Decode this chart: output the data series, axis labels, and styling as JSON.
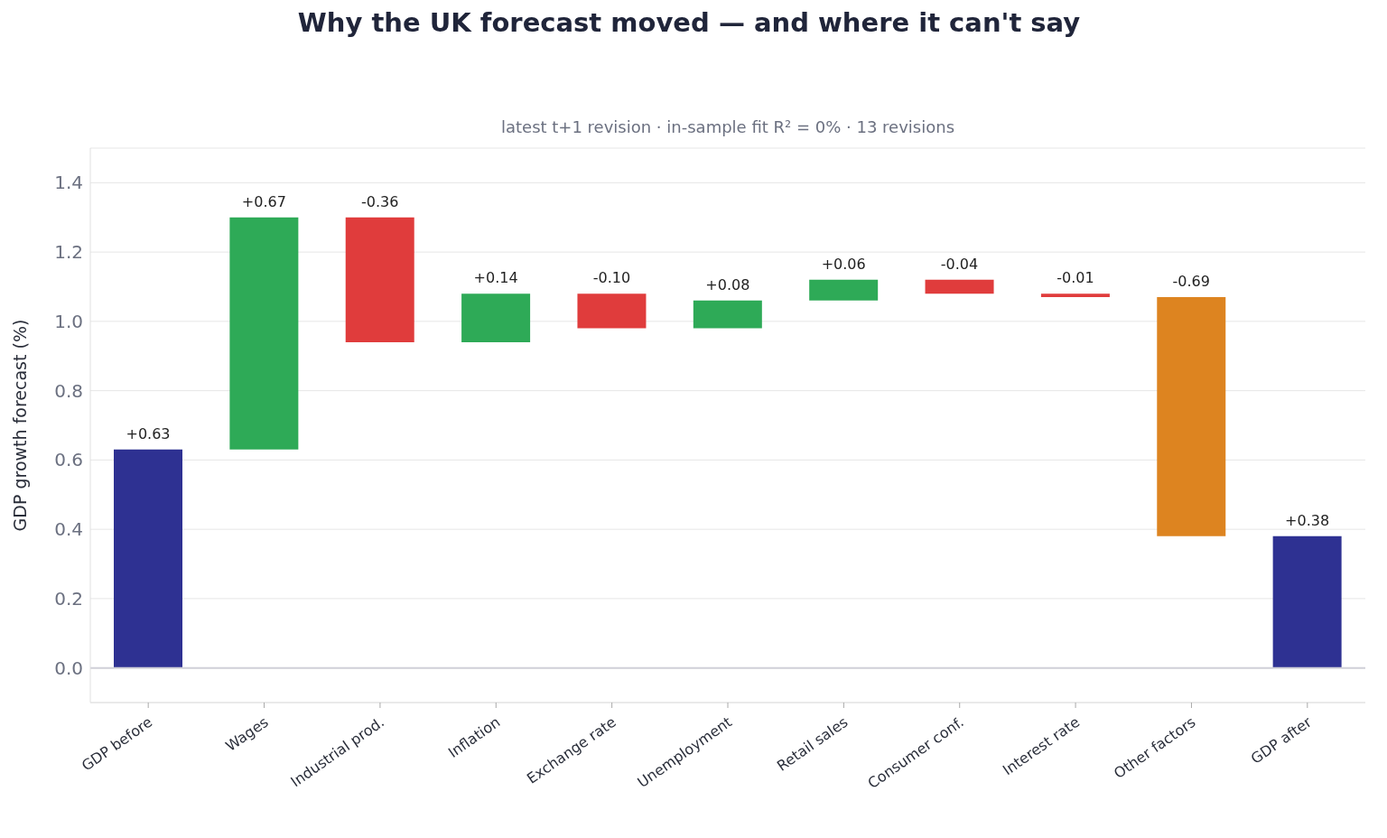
{
  "chart_data": {
    "type": "bar",
    "title": "Why the UK forecast moved — and where it can't say",
    "subtitle": "latest t+1 revision · in-sample fit R² = 0% · 13 revisions",
    "ylabel": "GDP growth forecast (%)",
    "categories": [
      "GDP before",
      "Wages",
      "Industrial prod.",
      "Inflation",
      "Exchange rate",
      "Unemployment",
      "Retail sales",
      "Consumer conf.",
      "Interest rate",
      "Other factors",
      "GDP after"
    ],
    "values": [
      0.63,
      0.67,
      -0.36,
      0.14,
      -0.1,
      0.08,
      0.06,
      -0.04,
      -0.01,
      -0.69,
      0.38
    ],
    "base": [
      0,
      0.63,
      1.3,
      0.94,
      1.08,
      0.98,
      1.06,
      1.12,
      1.08,
      1.07,
      0
    ],
    "colors": [
      "#2e3192",
      "#2eaa57",
      "#e03c3c",
      "#2eaa57",
      "#e03c3c",
      "#2eaa57",
      "#2eaa57",
      "#e03c3c",
      "#e03c3c",
      "#dd8420",
      "#2e3192"
    ],
    "value_labels": [
      "+0.63",
      "+0.67",
      "-0.36",
      "+0.14",
      "-0.10",
      "+0.08",
      "+0.06",
      "-0.04",
      "-0.01",
      "-0.69",
      "+0.38"
    ],
    "ylim": [
      -0.1,
      1.5
    ],
    "yticks": [
      {
        "value": 0,
        "label": "0.0"
      },
      {
        "value": 0.2,
        "label": "0.2"
      },
      {
        "value": 0.4,
        "label": "0.4"
      },
      {
        "value": 0.6,
        "label": "0.6"
      },
      {
        "value": 0.8,
        "label": "0.8"
      },
      {
        "value": 1.0,
        "label": "1.0"
      },
      {
        "value": 1.2,
        "label": "1.2"
      },
      {
        "value": 1.4,
        "label": "1.4"
      }
    ],
    "ref_lines": [
      {
        "axis": "y",
        "value": 0,
        "color": "#d0d0d8"
      }
    ],
    "grid": "y"
  }
}
